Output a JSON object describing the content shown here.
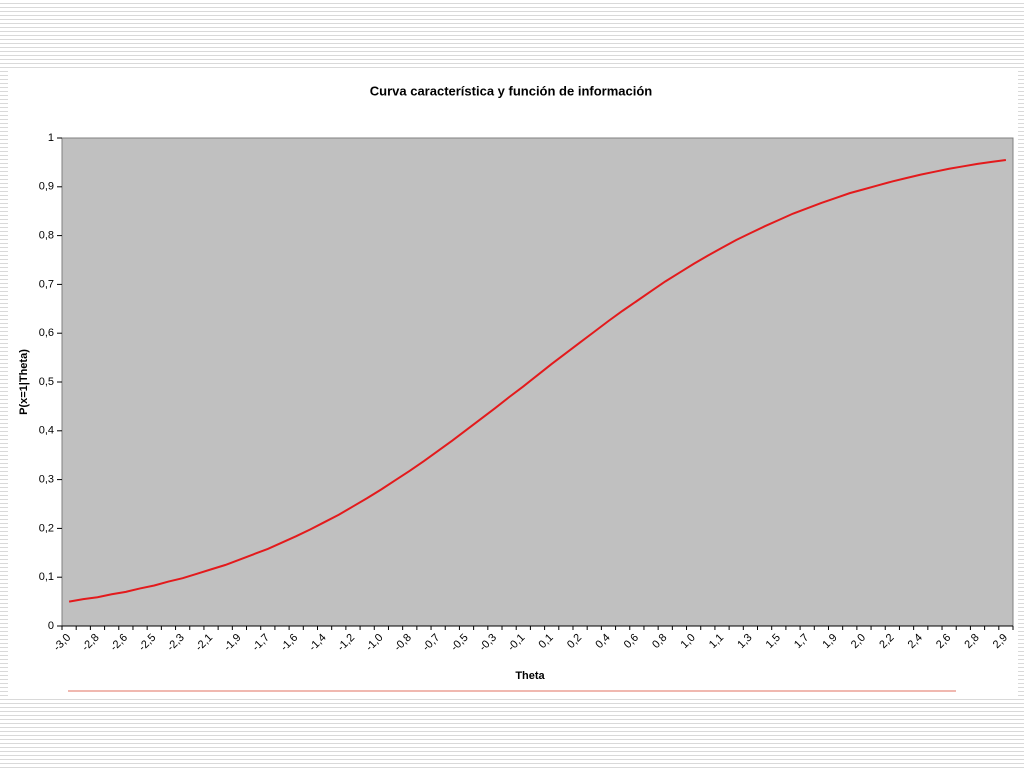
{
  "chart_data": {
    "type": "line",
    "title": "Curva característica y función de información",
    "x_label": "Theta",
    "y_label": "P(x=1|Theta)",
    "categories": [
      "-3,0",
      null,
      "-2,8",
      null,
      "-2,6",
      null,
      "-2,5",
      null,
      "-2,3",
      null,
      "-2,1",
      null,
      "-1,9",
      null,
      "-1,7",
      null,
      "-1,6",
      null,
      "-1,4",
      null,
      "-1,2",
      null,
      "-1,0",
      null,
      "-0,8",
      null,
      "-0,7",
      null,
      "-0,5",
      null,
      "-0,3",
      null,
      "-0,1",
      null,
      "0,1",
      null,
      "0,2",
      null,
      "0,4",
      null,
      "0,6",
      null,
      "0,8",
      null,
      "1,0",
      null,
      "1,1",
      null,
      "1,3",
      null,
      "1,5",
      null,
      "1,7",
      null,
      "1,9",
      null,
      "2,0",
      null,
      "2,2",
      null,
      "2,4",
      null,
      "2,6",
      null,
      "2,8",
      null,
      "2,9"
    ],
    "series": [
      {
        "color": "#e31a1c",
        "values": [
          0.05,
          0.055,
          0.059,
          0.065,
          0.07,
          0.077,
          0.083,
          0.091,
          0.098,
          0.107,
          0.116,
          0.125,
          0.136,
          0.147,
          0.158,
          0.171,
          0.184,
          0.198,
          0.213,
          0.228,
          0.245,
          0.262,
          0.28,
          0.299,
          0.318,
          0.338,
          0.359,
          0.38,
          0.402,
          0.424,
          0.446,
          0.469,
          0.491,
          0.514,
          0.537,
          0.559,
          0.581,
          0.603,
          0.625,
          0.646,
          0.666,
          0.686,
          0.706,
          0.724,
          0.742,
          0.759,
          0.775,
          0.791,
          0.805,
          0.819,
          0.832,
          0.845,
          0.856,
          0.867,
          0.877,
          0.887,
          0.895,
          0.903,
          0.911,
          0.918,
          0.925,
          0.931,
          0.937,
          0.942,
          0.947,
          0.951,
          0.955
        ]
      }
    ],
    "ylim": [
      0,
      1
    ],
    "yticks": [
      0,
      {
        "value": 0.1,
        "label": "0,1"
      },
      {
        "value": 0.2,
        "label": "0,2"
      },
      {
        "value": 0.3,
        "label": "0,3"
      },
      {
        "value": 0.4,
        "label": "0,4"
      },
      {
        "value": 0.5,
        "label": "0,5"
      },
      {
        "value": 0.6,
        "label": "0,6"
      },
      {
        "value": 0.7,
        "label": "0,7"
      },
      {
        "value": 0.8,
        "label": "0,8"
      },
      {
        "value": 0.9,
        "label": "0,9"
      },
      1
    ],
    "grid": false,
    "plot_background": "#c0c0c0"
  }
}
